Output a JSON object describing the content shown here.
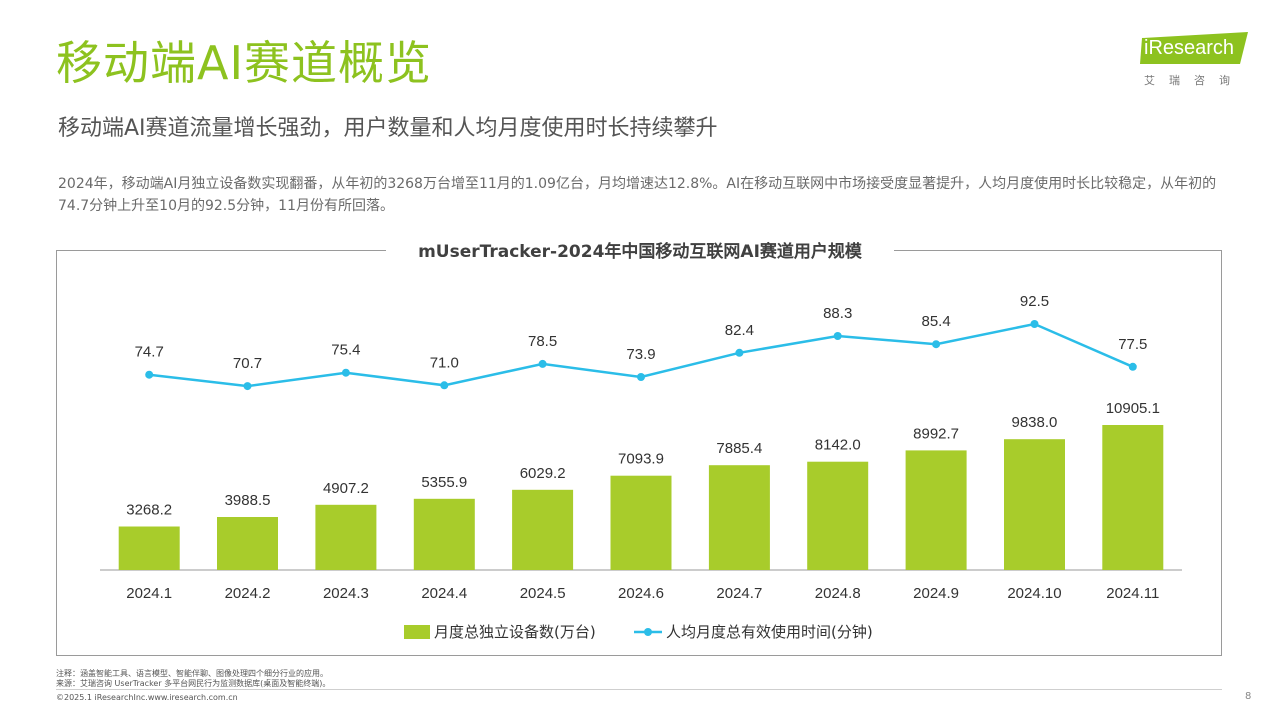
{
  "header": {
    "title": "移动端AI赛道概览",
    "subtitle": "移动端AI赛道流量增长强劲，用户数量和人均月度使用时长持续攀升",
    "description": "2024年，移动端AI月独立设备数实现翻番，从年初的3268万台增至11月的1.09亿台，月均增速达12.8%。AI在移动互联网中市场接受度显著提升，人均月度使用时长比较稳定，从年初的74.7分钟上升至10月的92.5分钟，11月份有所回落。"
  },
  "logo": {
    "text": "iResearch",
    "cn": "艾瑞咨询"
  },
  "chart_data": {
    "type": "bar",
    "title": "mUserTracker-2024年中国移动互联网AI赛道用户规模",
    "categories": [
      "2024.1",
      "2024.2",
      "2024.3",
      "2024.4",
      "2024.5",
      "2024.6",
      "2024.7",
      "2024.8",
      "2024.9",
      "2024.10",
      "2024.11"
    ],
    "series": [
      {
        "name": "月度总独立设备数(万台)",
        "type": "bar",
        "values": [
          3268.2,
          3988.5,
          4907.2,
          5355.9,
          6029.2,
          7093.9,
          7885.4,
          8142.0,
          8992.7,
          9838.0,
          10905.1
        ],
        "labels": [
          "3268.2",
          "3988.5",
          "4907.2",
          "5355.9",
          "6029.2",
          "7093.9",
          "7885.4",
          "8142.0",
          "8992.7",
          "9838.0",
          "10905.1"
        ],
        "color": "#a8cc2b"
      },
      {
        "name": "人均月度总有效使用时间(分钟)",
        "type": "line",
        "values": [
          74.7,
          70.7,
          75.4,
          71.0,
          78.5,
          73.9,
          82.4,
          88.3,
          85.4,
          92.5,
          77.5
        ],
        "labels": [
          "74.7",
          "70.7",
          "75.4",
          "71.0",
          "78.5",
          "73.9",
          "82.4",
          "88.3",
          "85.4",
          "92.5",
          "77.5"
        ],
        "color": "#2bbde8"
      }
    ],
    "legend_position": "bottom",
    "grid": false
  },
  "footer": {
    "note1": "注释：涵盖智能工具、语言模型、智能伴聊、图像处理四个细分行业的应用。",
    "note2": "来源：艾瑞咨询 UserTracker 多平台网民行为监测数据库(桌面及智能终端)。",
    "copyright": "©2025.1 iResearchInc.www.iresearch.com.cn",
    "page": "8"
  }
}
